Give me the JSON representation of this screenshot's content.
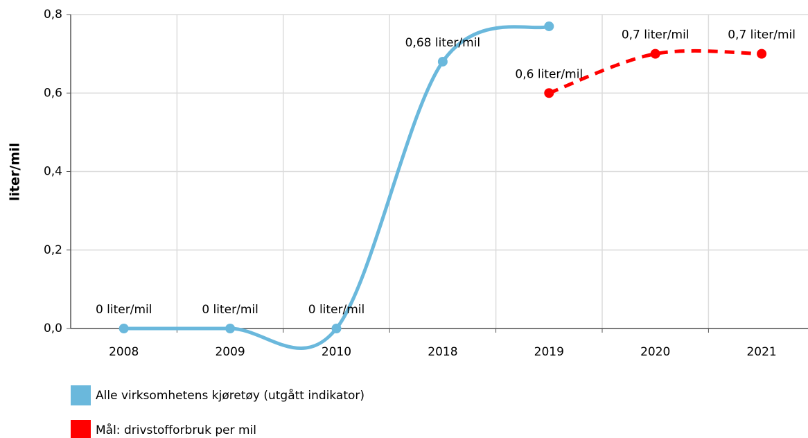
{
  "chart_data": {
    "type": "line",
    "y_label": "liter/mil",
    "categories": [
      "2008",
      "2009",
      "2010",
      "2018",
      "2019",
      "2020",
      "2021"
    ],
    "series": [
      {
        "name": "Alle virksomhetens kjøretøy (utgått indikator)",
        "color": "#6ab8dc",
        "dashed": false,
        "values": [
          0,
          0,
          0,
          0.68,
          0.77,
          null,
          null
        ],
        "value_labels": [
          "0 liter/mil",
          "0 liter/mil",
          "0 liter/mil",
          "0,68 liter/mil",
          null,
          null,
          null
        ]
      },
      {
        "name": "Mål: drivstofforbruk per mil",
        "color": "#ff0000",
        "dashed": true,
        "values": [
          null,
          null,
          null,
          null,
          0.6,
          0.7,
          0.7
        ],
        "value_labels": [
          null,
          null,
          null,
          null,
          "0,6 liter/mil",
          "0,7 liter/mil",
          "0,7 liter/mil"
        ]
      }
    ],
    "ylim": [
      0,
      0.8
    ],
    "yticks": [
      {
        "value": 0,
        "label": "0,0"
      },
      {
        "value": 0.2,
        "label": "0,2"
      },
      {
        "value": 0.4,
        "label": "0,4"
      },
      {
        "value": 0.6,
        "label": "0,6"
      },
      {
        "value": 0.8,
        "label": "0,8"
      }
    ],
    "grid": true,
    "legend": "bottom"
  }
}
